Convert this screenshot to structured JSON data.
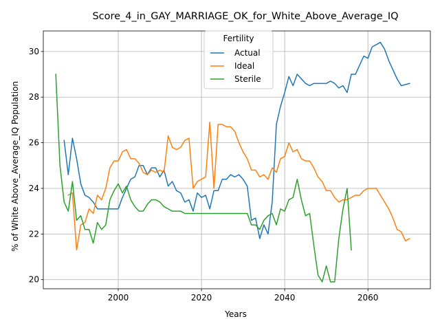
{
  "chart_data": {
    "type": "line",
    "title": "Score_4_in_GAY_MARRIAGE_OK_for_White_Above_Average_IQ",
    "xlabel": "Years",
    "ylabel": "% of White Above_Average_IQ Population",
    "xlim": [
      1982,
      2075
    ],
    "ylim": [
      19.6,
      30.9
    ],
    "x_ticks": [
      2000,
      2020,
      2040,
      2060
    ],
    "y_ticks": [
      20,
      22,
      24,
      26,
      28,
      30
    ],
    "grid": true,
    "legend": {
      "title": "Fertility",
      "placement": "top-center"
    },
    "series": [
      {
        "name": "Actual",
        "color": "#1f77b4",
        "points": [
          [
            1987,
            26.1
          ],
          [
            1988,
            24.6
          ],
          [
            1989,
            26.2
          ],
          [
            1990,
            25.3
          ],
          [
            1991,
            24.2
          ],
          [
            1992,
            23.7
          ],
          [
            1993,
            23.6
          ],
          [
            1994,
            23.4
          ],
          [
            1995,
            23.1
          ],
          [
            1996,
            23.1
          ],
          [
            1997,
            23.1
          ],
          [
            1998,
            23.1
          ],
          [
            1999,
            23.1
          ],
          [
            2000,
            23.1
          ],
          [
            2001,
            23.6
          ],
          [
            2002,
            24.0
          ],
          [
            2003,
            24.4
          ],
          [
            2004,
            24.5
          ],
          [
            2005,
            25.0
          ],
          [
            2006,
            25.0
          ],
          [
            2007,
            24.6
          ],
          [
            2008,
            24.9
          ],
          [
            2009,
            24.9
          ],
          [
            2010,
            24.5
          ],
          [
            2011,
            24.8
          ],
          [
            2012,
            24.1
          ],
          [
            2013,
            24.3
          ],
          [
            2014,
            23.9
          ],
          [
            2015,
            23.8
          ],
          [
            2016,
            23.4
          ],
          [
            2017,
            23.5
          ],
          [
            2018,
            23.0
          ],
          [
            2019,
            23.8
          ],
          [
            2020,
            23.6
          ],
          [
            2021,
            23.7
          ],
          [
            2022,
            23.1
          ],
          [
            2023,
            23.9
          ],
          [
            2024,
            23.9
          ],
          [
            2025,
            24.4
          ],
          [
            2026,
            24.4
          ],
          [
            2027,
            24.6
          ],
          [
            2028,
            24.5
          ],
          [
            2029,
            24.6
          ],
          [
            2030,
            24.4
          ],
          [
            2031,
            24.1
          ],
          [
            2032,
            22.6
          ],
          [
            2033,
            22.7
          ],
          [
            2034,
            21.8
          ],
          [
            2035,
            22.4
          ],
          [
            2036,
            22.0
          ],
          [
            2037,
            23.4
          ],
          [
            2038,
            26.8
          ],
          [
            2039,
            27.6
          ],
          [
            2040,
            28.2
          ],
          [
            2041,
            28.9
          ],
          [
            2042,
            28.5
          ],
          [
            2043,
            29.0
          ],
          [
            2044,
            28.8
          ],
          [
            2045,
            28.6
          ],
          [
            2046,
            28.5
          ],
          [
            2047,
            28.6
          ],
          [
            2048,
            28.6
          ],
          [
            2049,
            28.6
          ],
          [
            2050,
            28.6
          ],
          [
            2051,
            28.7
          ],
          [
            2052,
            28.6
          ],
          [
            2053,
            28.4
          ],
          [
            2054,
            28.5
          ],
          [
            2055,
            28.2
          ],
          [
            2056,
            29.0
          ],
          [
            2057,
            29.0
          ],
          [
            2058,
            29.4
          ],
          [
            2059,
            29.8
          ],
          [
            2060,
            29.7
          ],
          [
            2061,
            30.2
          ],
          [
            2062,
            30.3
          ],
          [
            2063,
            30.4
          ],
          [
            2064,
            30.1
          ],
          [
            2065,
            29.6
          ],
          [
            2066,
            29.2
          ],
          [
            2067,
            28.8
          ],
          [
            2068,
            28.5
          ],
          [
            2070,
            28.6
          ]
        ]
      },
      {
        "name": "Ideal",
        "color": "#ff7f0e",
        "points": [
          [
            1988,
            23.7
          ],
          [
            1989,
            23.8
          ],
          [
            1990,
            21.3
          ],
          [
            1991,
            22.4
          ],
          [
            1992,
            22.5
          ],
          [
            1993,
            23.1
          ],
          [
            1994,
            22.9
          ],
          [
            1995,
            23.7
          ],
          [
            1996,
            23.5
          ],
          [
            1997,
            24.0
          ],
          [
            1998,
            24.9
          ],
          [
            1999,
            25.2
          ],
          [
            2000,
            25.2
          ],
          [
            2001,
            25.6
          ],
          [
            2002,
            25.7
          ],
          [
            2003,
            25.3
          ],
          [
            2004,
            25.3
          ],
          [
            2005,
            25.1
          ],
          [
            2006,
            24.7
          ],
          [
            2007,
            24.6
          ],
          [
            2008,
            24.8
          ],
          [
            2009,
            24.7
          ],
          [
            2010,
            24.8
          ],
          [
            2011,
            24.7
          ],
          [
            2012,
            26.3
          ],
          [
            2013,
            25.8
          ],
          [
            2014,
            25.7
          ],
          [
            2015,
            25.8
          ],
          [
            2016,
            26.1
          ],
          [
            2017,
            26.2
          ],
          [
            2018,
            24.0
          ],
          [
            2019,
            24.3
          ],
          [
            2020,
            24.4
          ],
          [
            2021,
            24.5
          ],
          [
            2022,
            26.9
          ],
          [
            2023,
            24.0
          ],
          [
            2024,
            26.8
          ],
          [
            2025,
            26.8
          ],
          [
            2026,
            26.7
          ],
          [
            2027,
            26.7
          ],
          [
            2028,
            26.5
          ],
          [
            2029,
            26.0
          ],
          [
            2030,
            25.6
          ],
          [
            2031,
            25.3
          ],
          [
            2032,
            24.8
          ],
          [
            2033,
            24.8
          ],
          [
            2034,
            24.5
          ],
          [
            2035,
            24.6
          ],
          [
            2036,
            24.4
          ],
          [
            2037,
            24.9
          ],
          [
            2038,
            24.7
          ],
          [
            2039,
            25.3
          ],
          [
            2040,
            25.4
          ],
          [
            2041,
            26.0
          ],
          [
            2042,
            25.6
          ],
          [
            2043,
            25.7
          ],
          [
            2044,
            25.3
          ],
          [
            2045,
            25.2
          ],
          [
            2046,
            25.2
          ],
          [
            2047,
            24.9
          ],
          [
            2048,
            24.5
          ],
          [
            2049,
            24.3
          ],
          [
            2050,
            23.9
          ],
          [
            2051,
            23.9
          ],
          [
            2052,
            23.6
          ],
          [
            2053,
            23.4
          ],
          [
            2054,
            23.5
          ],
          [
            2055,
            23.5
          ],
          [
            2056,
            23.6
          ],
          [
            2057,
            23.7
          ],
          [
            2058,
            23.7
          ],
          [
            2059,
            23.9
          ],
          [
            2060,
            24.0
          ],
          [
            2061,
            24.0
          ],
          [
            2062,
            24.0
          ],
          [
            2063,
            23.7
          ],
          [
            2064,
            23.4
          ],
          [
            2065,
            23.1
          ],
          [
            2066,
            22.7
          ],
          [
            2067,
            22.2
          ],
          [
            2068,
            22.1
          ],
          [
            2069,
            21.7
          ],
          [
            2070,
            21.8
          ]
        ]
      },
      {
        "name": "Sterile",
        "color": "#2ca02c",
        "points": [
          [
            1985,
            29.0
          ],
          [
            1986,
            25.0
          ],
          [
            1987,
            23.4
          ],
          [
            1988,
            23.0
          ],
          [
            1989,
            24.3
          ],
          [
            1990,
            22.6
          ],
          [
            1991,
            22.8
          ],
          [
            1992,
            22.2
          ],
          [
            1993,
            22.2
          ],
          [
            1994,
            21.6
          ],
          [
            1995,
            22.5
          ],
          [
            1996,
            22.2
          ],
          [
            1997,
            22.4
          ],
          [
            1998,
            23.5
          ],
          [
            1999,
            23.9
          ],
          [
            2000,
            24.2
          ],
          [
            2001,
            23.8
          ],
          [
            2002,
            24.1
          ],
          [
            2003,
            23.5
          ],
          [
            2004,
            23.2
          ],
          [
            2005,
            23.0
          ],
          [
            2006,
            23.0
          ],
          [
            2007,
            23.3
          ],
          [
            2008,
            23.5
          ],
          [
            2009,
            23.5
          ],
          [
            2010,
            23.4
          ],
          [
            2011,
            23.2
          ],
          [
            2012,
            23.1
          ],
          [
            2013,
            23.0
          ],
          [
            2014,
            23.0
          ],
          [
            2015,
            23.0
          ],
          [
            2016,
            22.9
          ],
          [
            2017,
            22.9
          ],
          [
            2018,
            22.9
          ],
          [
            2019,
            22.9
          ],
          [
            2020,
            22.9
          ],
          [
            2021,
            22.9
          ],
          [
            2022,
            22.9
          ],
          [
            2023,
            22.9
          ],
          [
            2024,
            22.9
          ],
          [
            2025,
            22.9
          ],
          [
            2026,
            22.9
          ],
          [
            2027,
            22.9
          ],
          [
            2028,
            22.9
          ],
          [
            2029,
            22.9
          ],
          [
            2030,
            22.9
          ],
          [
            2031,
            22.9
          ],
          [
            2032,
            22.4
          ],
          [
            2033,
            22.4
          ],
          [
            2034,
            22.2
          ],
          [
            2035,
            22.6
          ],
          [
            2036,
            22.8
          ],
          [
            2037,
            22.9
          ],
          [
            2038,
            22.4
          ],
          [
            2039,
            23.1
          ],
          [
            2040,
            23.0
          ],
          [
            2041,
            23.5
          ],
          [
            2042,
            23.6
          ],
          [
            2043,
            24.4
          ],
          [
            2044,
            23.5
          ],
          [
            2045,
            22.8
          ],
          [
            2046,
            22.9
          ],
          [
            2047,
            21.5
          ],
          [
            2048,
            20.2
          ],
          [
            2049,
            19.9
          ],
          [
            2050,
            20.6
          ],
          [
            2051,
            19.9
          ],
          [
            2052,
            19.9
          ],
          [
            2053,
            21.8
          ],
          [
            2054,
            23.1
          ],
          [
            2055,
            24.0
          ],
          [
            2056,
            21.3
          ]
        ]
      }
    ]
  }
}
